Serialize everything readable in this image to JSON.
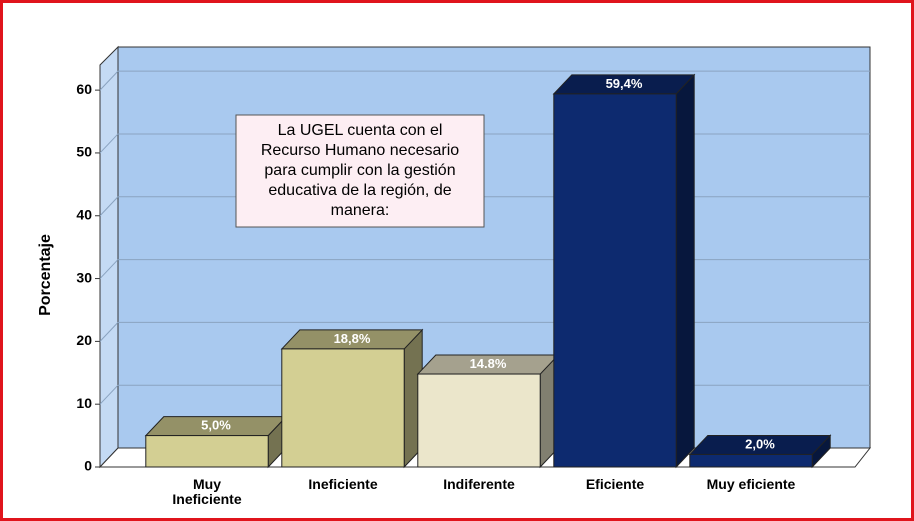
{
  "chart_data": {
    "type": "bar3d",
    "ylabel": "Porcentaje",
    "categories": [
      "Muy Ineficiente",
      "Ineficiente",
      "Indiferente",
      "Eficiente",
      "Muy eficiente"
    ],
    "values": [
      5.0,
      18.8,
      14.8,
      59.4,
      2.0
    ],
    "value_labels": [
      "5,0%",
      "18,8%",
      "14.8%",
      "59,4%",
      "2,0%"
    ],
    "colors": [
      "#d3cf93",
      "#d3cf93",
      "#ebe6cb",
      "#0d2a6f",
      "#0d2a6f"
    ],
    "ylim": [
      0,
      64
    ],
    "yticks": [
      0,
      10,
      20,
      30,
      40,
      50,
      60
    ],
    "grid": true,
    "annotation": [
      "La UGEL cuenta con el",
      "Recurso Humano necesario",
      "para cumplir con la gestión",
      "educativa de la región, de",
      "manera:"
    ]
  }
}
